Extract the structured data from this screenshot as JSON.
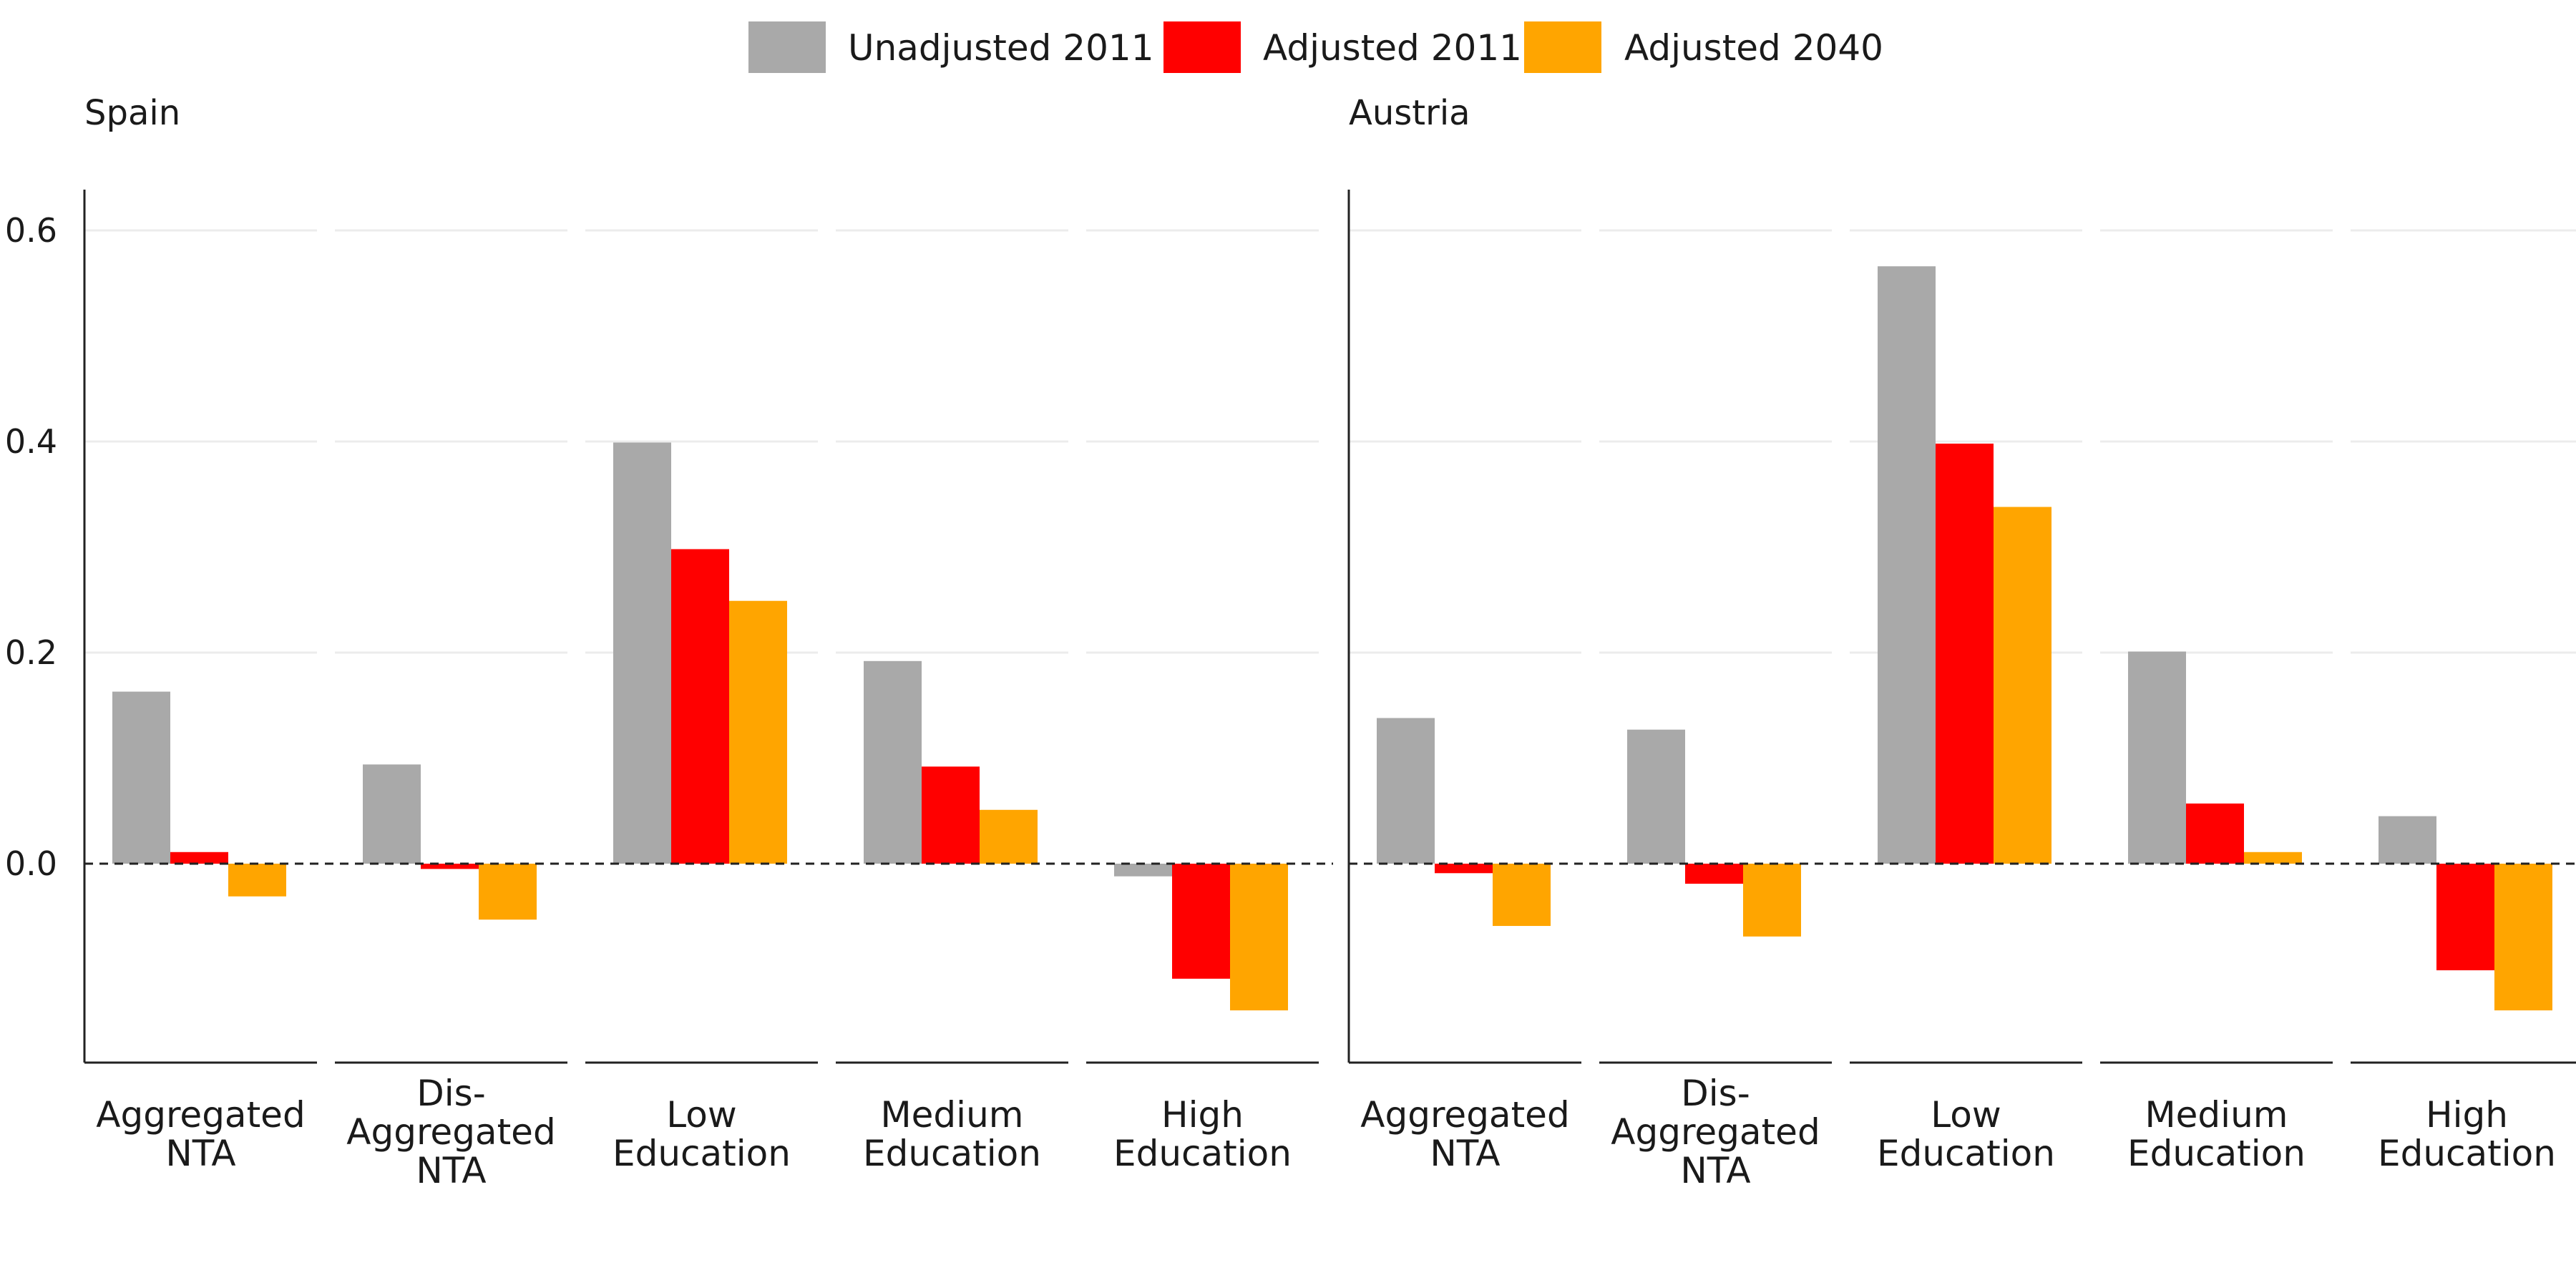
{
  "chart_data": {
    "type": "bar",
    "legend": [
      {
        "name": "Unadjusted 2011",
        "color": "#a9a9a9"
      },
      {
        "name": "Adjusted 2011",
        "color": "#ff0000"
      },
      {
        "name": "Adjusted 2040",
        "color": "#ffa500"
      }
    ],
    "categories": [
      [
        "Aggregated",
        "NTA"
      ],
      [
        "Dis-",
        "Aggregated",
        "NTA"
      ],
      [
        "Low",
        "Education"
      ],
      [
        "Medium",
        "Education"
      ],
      [
        "High",
        "Education"
      ]
    ],
    "ylim": [
      -0.185,
      0.64
    ],
    "yticks": [
      0.0,
      0.2,
      0.4,
      0.6
    ],
    "ytick_labels": [
      "0.0",
      "0.2",
      "0.4",
      "0.6"
    ],
    "reference_line": 0,
    "panels": [
      {
        "title": "Spain",
        "series": [
          {
            "name": "Unadjusted 2011",
            "values": [
              0.163,
              0.094,
              0.399,
              0.192,
              -0.012
            ]
          },
          {
            "name": "Adjusted 2011",
            "values": [
              0.011,
              -0.005,
              0.298,
              0.092,
              -0.109
            ]
          },
          {
            "name": "Adjusted 2040",
            "values": [
              -0.031,
              -0.053,
              0.249,
              0.051,
              -0.139
            ]
          }
        ]
      },
      {
        "title": "Austria",
        "series": [
          {
            "name": "Unadjusted 2011",
            "values": [
              0.138,
              0.127,
              0.566,
              0.201,
              0.045
            ]
          },
          {
            "name": "Adjusted 2011",
            "values": [
              -0.009,
              -0.019,
              0.398,
              0.057,
              -0.101
            ]
          },
          {
            "name": "Adjusted 2040",
            "values": [
              -0.059,
              -0.069,
              0.338,
              0.011,
              -0.139
            ]
          }
        ]
      }
    ]
  }
}
